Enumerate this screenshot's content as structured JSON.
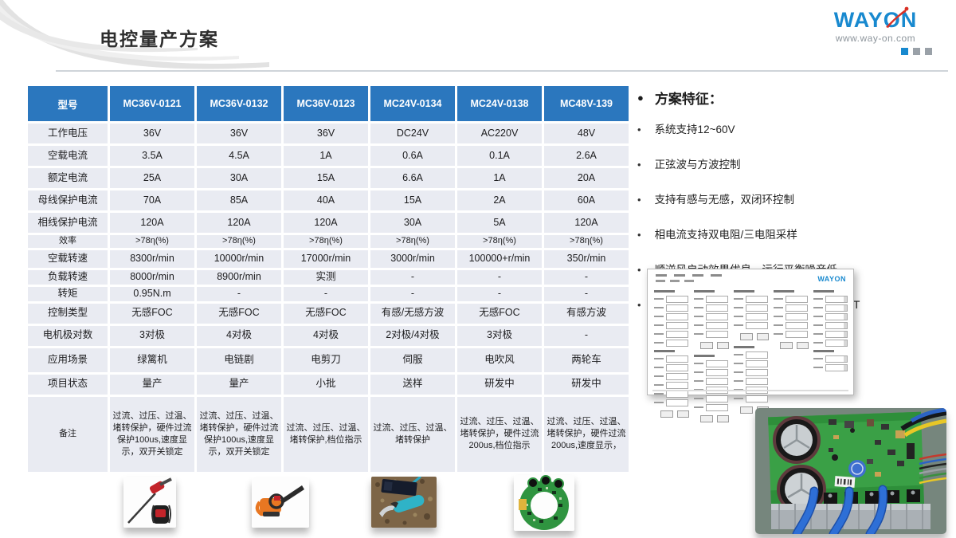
{
  "title": "电控量产方案",
  "logo": {
    "brand": "WAYON",
    "website": "www.way-on.com"
  },
  "colors": {
    "header_blue": "#2B77BE",
    "accent_blue": "#3E86C8",
    "cell_bg": "#E9EBF2",
    "logo_blue": "#1889CF",
    "logo_red": "#D93025"
  },
  "table": {
    "columns": [
      "型号",
      "MC36V-0121",
      "MC36V-0132",
      "MC36V-0123",
      "MC24V-0134",
      "MC24V-0138",
      "MC48V-139"
    ],
    "rows": [
      {
        "label": "工作电压",
        "values": [
          "36V",
          "36V",
          "36V",
          "DC24V",
          "AC220V",
          "48V"
        ]
      },
      {
        "label": "空载电流",
        "values": [
          "3.5A",
          "4.5A",
          "1A",
          "0.6A",
          "0.1A",
          "2.6A"
        ]
      },
      {
        "label": "额定电流",
        "values": [
          "25A",
          "30A",
          "15A",
          "6.6A",
          "1A",
          "20A"
        ]
      },
      {
        "label": "母线保护电流",
        "values": [
          "70A",
          "85A",
          "40A",
          "15A",
          "2A",
          "60A"
        ]
      },
      {
        "label": "相线保护电流",
        "values": [
          "120A",
          "120A",
          "120A",
          "30A",
          "5A",
          "120A"
        ]
      },
      {
        "label": "效率",
        "values": [
          ">78η(%)",
          ">78η(%)",
          ">78η(%)",
          ">78η(%)",
          ">78η(%)",
          ">78η(%)"
        ]
      },
      {
        "label": "空载转速",
        "blue_label": true,
        "values": [
          "8300r/min",
          "10000r/min",
          "17000r/min",
          "3000r/min",
          "100000+r/min",
          "350r/min"
        ]
      },
      {
        "label": "负载转速",
        "values": [
          "8000r/min",
          "8900r/min",
          "实测",
          "-",
          "-",
          "-"
        ]
      },
      {
        "label": "转矩",
        "values": [
          "0.95N.m",
          "-",
          "-",
          "-",
          "-",
          "-"
        ]
      },
      {
        "label": "控制类型",
        "blue_label": true,
        "values": [
          "无感FOC",
          "无感FOC",
          "无感FOC",
          "有感/无感方波",
          "无感FOC",
          "有感方波"
        ]
      },
      {
        "label": "电机极对数",
        "values": [
          "3对极",
          "4对极",
          "4对极",
          "2对极/4对极",
          "3对极",
          "-"
        ]
      },
      {
        "label": "应用场景",
        "blue_label": true,
        "values": [
          "绿篱机",
          "电链剧",
          "电剪刀",
          "伺服",
          "电吹风",
          "两轮车"
        ]
      },
      {
        "label": "项目状态",
        "values": [
          "量产",
          "量产",
          "小批",
          "送样",
          "研发中",
          "研发中"
        ],
        "blue_cells": [
          4,
          5
        ]
      },
      {
        "label": "备注",
        "values": [
          "过流、过压、过温、堵转保护，硬件过流保护100us,速度显示，双开关锁定",
          "过流、过压、过温、堵转保护，硬件过流保护100us,速度显示，双开关锁定",
          "过流、过压、过温、堵转保护,档位指示",
          "过流、过压、过温、堵转保护",
          "过流、过压、过温、堵转保护，硬件过流200us,档位指示",
          "过流、过压、过温、堵转保护，硬件过流200us,速度显示，"
        ]
      }
    ]
  },
  "features": {
    "header": "方案特征：",
    "items": [
      "系统支持12~60V",
      "正弦波与方波控制",
      "支持有感与无感，双闭环控制",
      "相电流支持双电阻/三电阻采样",
      "顺逆风启动效果优良，运行平衡噪音低",
      "提供参数配置工具，快速调参，CAN/UART"
    ]
  },
  "tool": {
    "logo": "WAYON"
  },
  "images": {
    "bottom_photos": [
      "hedge-trimmer",
      "chainsaw",
      "electric-pruning-shears",
      "ring-pcb-module"
    ],
    "right_photo": "motor-controller-board"
  }
}
